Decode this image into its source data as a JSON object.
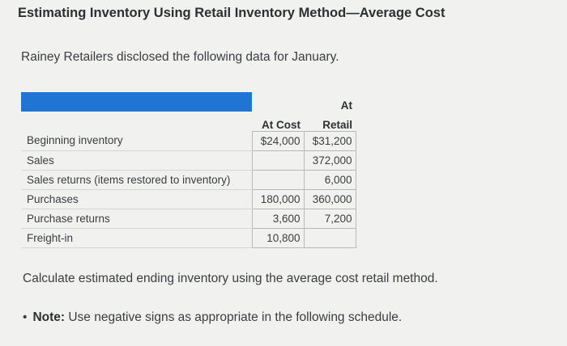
{
  "title": "Estimating Inventory Using Retail Inventory Method—Average Cost",
  "intro": "Rainey Retailers disclosed the following data for January.",
  "table": {
    "headers": {
      "cost_line1": "",
      "cost_line2": "At Cost",
      "retail_line1": "At",
      "retail_line2": "Retail"
    },
    "rows": [
      {
        "label": "Beginning inventory",
        "cost": "$24,000",
        "retail": "$31,200"
      },
      {
        "label": "Sales",
        "cost": "",
        "retail": "372,000"
      },
      {
        "label": "Sales returns (items restored to inventory)",
        "cost": "",
        "retail": "6,000"
      },
      {
        "label": "Purchases",
        "cost": "180,000",
        "retail": "360,000"
      },
      {
        "label": "Purchase returns",
        "cost": "3,600",
        "retail": "7,200"
      },
      {
        "label": "Freight-in",
        "cost": "10,800",
        "retail": ""
      }
    ]
  },
  "question": "Calculate estimated ending inventory using the average cost retail method.",
  "note": {
    "bullet": "•",
    "label": "Note:",
    "text": " Use negative signs as appropriate in the following schedule."
  },
  "colors": {
    "header_band": "#1f74d4",
    "background": "#f1f1ef"
  }
}
